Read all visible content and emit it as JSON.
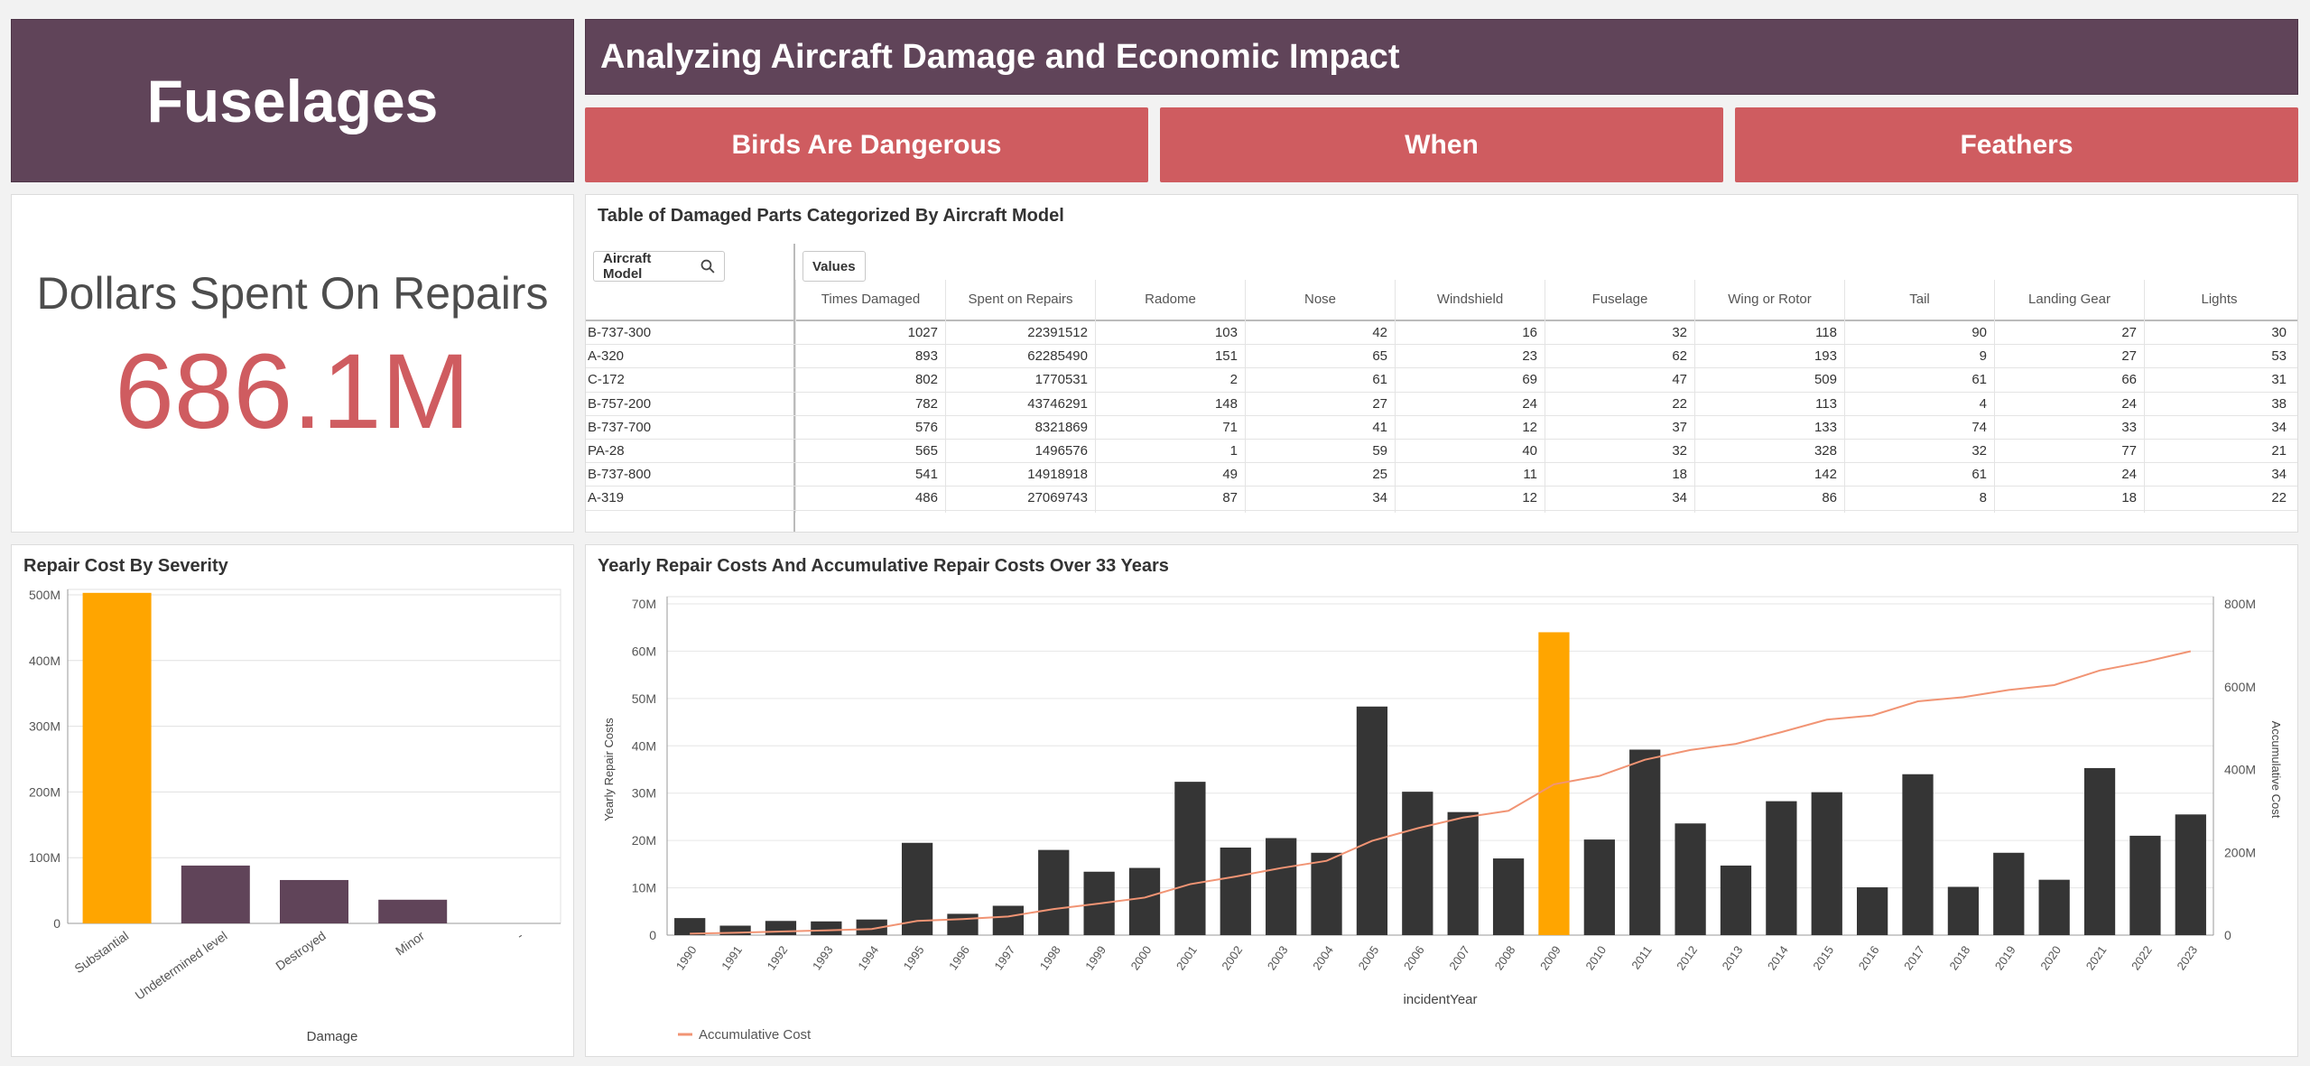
{
  "header": {
    "app_title": "Fuselages",
    "main_title": "Analyzing Aircraft Damage and Economic Impact",
    "nav": [
      "Birds Are Dangerous",
      "When",
      "Feathers"
    ]
  },
  "kpi": {
    "label": "Dollars Spent On Repairs",
    "value": "686.1M"
  },
  "table": {
    "title": "Table of Damaged Parts Categorized By Aircraft Model",
    "dim_button": "Aircraft Model",
    "values_button": "Values",
    "columns": [
      "Times Damaged",
      "Spent on Repairs",
      "Radome",
      "Nose",
      "Windshield",
      "Fuselage",
      "Wing or Rotor",
      "Tail",
      "Landing Gear",
      "Lights"
    ],
    "rows": [
      {
        "model": "B-737-300",
        "values": [
          "1027",
          "22391512",
          "103",
          "42",
          "16",
          "32",
          "118",
          "90",
          "27",
          "30"
        ]
      },
      {
        "model": "A-320",
        "values": [
          "893",
          "62285490",
          "151",
          "65",
          "23",
          "62",
          "193",
          "9",
          "27",
          "53"
        ]
      },
      {
        "model": "C-172",
        "values": [
          "802",
          "1770531",
          "2",
          "61",
          "69",
          "47",
          "509",
          "61",
          "66",
          "31"
        ]
      },
      {
        "model": "B-757-200",
        "values": [
          "782",
          "43746291",
          "148",
          "27",
          "24",
          "22",
          "113",
          "4",
          "24",
          "38"
        ]
      },
      {
        "model": "B-737-700",
        "values": [
          "576",
          "8321869",
          "71",
          "41",
          "12",
          "37",
          "133",
          "74",
          "33",
          "34"
        ]
      },
      {
        "model": "PA-28",
        "values": [
          "565",
          "1496576",
          "1",
          "59",
          "40",
          "32",
          "328",
          "32",
          "77",
          "21"
        ]
      },
      {
        "model": "B-737-800",
        "values": [
          "541",
          "14918918",
          "49",
          "25",
          "11",
          "18",
          "142",
          "61",
          "24",
          "34"
        ]
      },
      {
        "model": "A-319",
        "values": [
          "486",
          "27069743",
          "87",
          "34",
          "12",
          "34",
          "86",
          "8",
          "18",
          "22"
        ]
      }
    ]
  },
  "severity_chart": {
    "title": "Repair Cost By Severity",
    "chart_data": {
      "type": "bar",
      "categories": [
        "Substantial",
        "Undetermined level",
        "Destroyed",
        "Minor",
        "-"
      ],
      "values": [
        503,
        88,
        66,
        36,
        0
      ],
      "unit": "M",
      "xlabel": "Damage",
      "ylabel": "",
      "ylim": [
        0,
        500
      ],
      "yticks": [
        "0",
        "100M",
        "200M",
        "300M",
        "400M",
        "500M"
      ],
      "highlight_index": 0,
      "colors": {
        "bar": "#604459",
        "highlight": "#ffa500"
      }
    }
  },
  "yearly_chart": {
    "title": "Yearly Repair Costs And Accumulative Repair Costs Over 33 Years",
    "chart_data": {
      "type": "bar",
      "categories": [
        "1990",
        "1991",
        "1992",
        "1993",
        "1994",
        "1995",
        "1996",
        "1997",
        "1998",
        "1999",
        "2000",
        "2001",
        "2002",
        "2003",
        "2004",
        "2005",
        "2006",
        "2007",
        "2008",
        "2009",
        "2010",
        "2011",
        "2012",
        "2013",
        "2014",
        "2015",
        "2016",
        "2017",
        "2018",
        "2019",
        "2020",
        "2021",
        "2022",
        "2023"
      ],
      "series": [
        {
          "values": [
            3.6,
            2,
            3,
            2.9,
            3.3,
            19.5,
            4.5,
            6.2,
            18,
            13.4,
            14.2,
            32.4,
            18.5,
            20.5,
            17.4,
            48.3,
            30.3,
            26,
            16.2,
            64,
            20.2,
            39.2,
            23.6,
            14.7,
            28.3,
            30.2,
            10.1,
            34,
            10.2,
            17.4,
            11.7,
            35.3,
            21,
            25.5
          ]
        },
        {
          "name": "Accumulative Cost",
          "values": [
            3.6,
            5.6,
            8.6,
            11.5,
            14.8,
            34.3,
            38.8,
            45,
            63,
            76.4,
            90.6,
            123,
            141.5,
            162,
            179.4,
            227.7,
            258,
            284,
            300.2,
            364.2,
            384.4,
            423.6,
            447.2,
            461.9,
            490.2,
            520.4,
            530.5,
            564.5,
            574.7,
            592.1,
            603.8,
            639.1,
            660.1,
            685.6
          ]
        }
      ],
      "xlabel": "incidentYear",
      "ylabel": "Yearly Repair Costs",
      "y2label": "Accumulative Cost",
      "ylim": [
        0,
        70
      ],
      "y2lim": [
        0,
        800
      ],
      "yticks": [
        "0",
        "10M",
        "20M",
        "30M",
        "40M",
        "50M",
        "60M",
        "70M"
      ],
      "y2ticks": [
        "0",
        "200M",
        "400M",
        "600M",
        "800M"
      ],
      "highlight_index": 19,
      "colors": {
        "bar": "#353535",
        "highlight": "#ffa500",
        "line": "#f19474"
      }
    }
  }
}
